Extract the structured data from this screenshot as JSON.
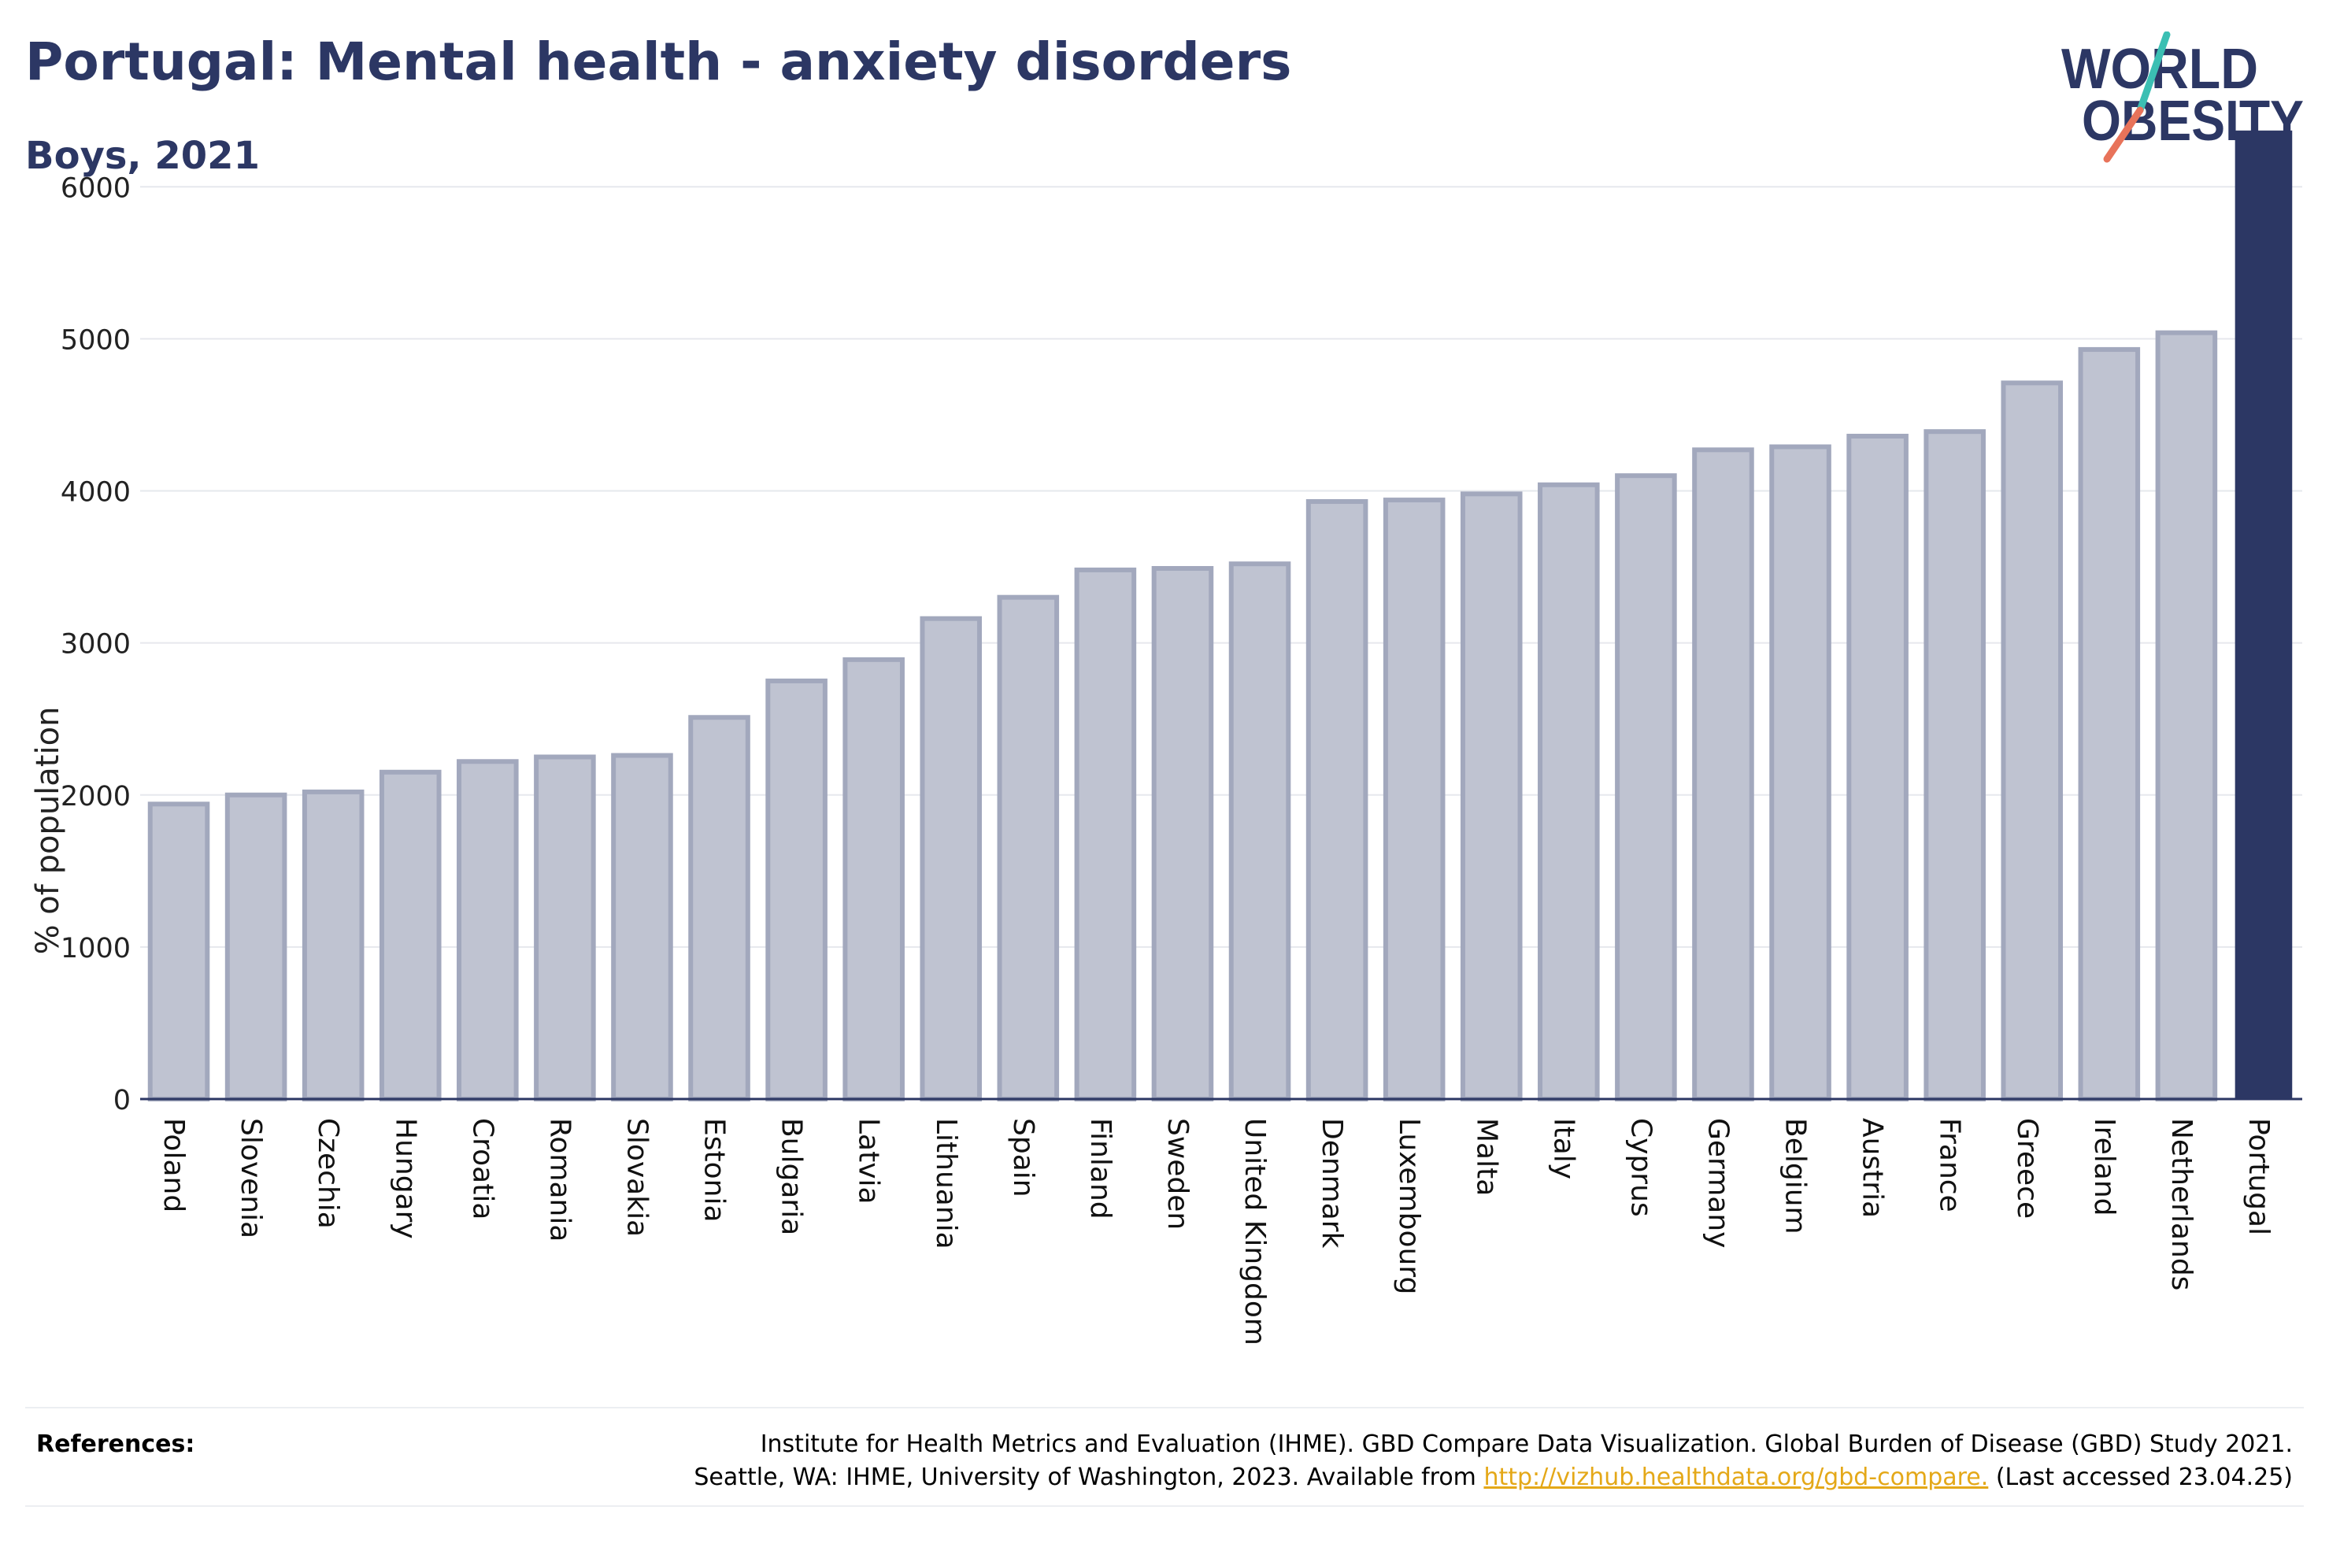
{
  "header": {
    "title": "Portugal: Mental health - anxiety disorders",
    "subtitle": "Boys, 2021"
  },
  "logo": {
    "line1": "WORLD",
    "line2": "OBESITY"
  },
  "colors": {
    "title": "#2c3764",
    "bar_default_fill": "#bfc3d1",
    "bar_default_stroke": "#a2a8bd",
    "bar_highlight": "#2c3764",
    "grid": "#e6e8ed",
    "logo_teal": "#3bbfb3",
    "logo_coral": "#e8735a",
    "link": "#e4a818"
  },
  "chart_data": {
    "type": "bar",
    "title": "Portugal: Mental health - anxiety disorders",
    "subtitle": "Boys, 2021",
    "xlabel": "",
    "ylabel": "% of population",
    "ylim": [
      0,
      6400
    ],
    "yticks": [
      0,
      1000,
      2000,
      3000,
      4000,
      5000,
      6000
    ],
    "grid": true,
    "highlight": "Portugal",
    "categories": [
      "Poland",
      "Slovenia",
      "Czechia",
      "Hungary",
      "Croatia",
      "Romania",
      "Slovakia",
      "Estonia",
      "Bulgaria",
      "Latvia",
      "Lithuania",
      "Spain",
      "Finland",
      "Sweden",
      "United Kingdom",
      "Denmark",
      "Luxembourg",
      "Malta",
      "Italy",
      "Cyprus",
      "Germany",
      "Belgium",
      "Austria",
      "France",
      "Greece",
      "Ireland",
      "Netherlands",
      "Portugal"
    ],
    "values": [
      1940,
      2000,
      2020,
      2150,
      2220,
      2250,
      2260,
      2510,
      2750,
      2890,
      3160,
      3300,
      3480,
      3490,
      3520,
      3930,
      3940,
      3980,
      4040,
      4100,
      4270,
      4290,
      4360,
      4390,
      4710,
      4930,
      5040,
      6370
    ]
  },
  "references": {
    "label": "References:",
    "line1": "Institute for Health Metrics and Evaluation (IHME). GBD Compare Data Visualization. Global Burden of Disease (GBD) Study 2021.",
    "line2_prefix": "Seattle, WA: IHME, University of Washington, 2023. Available from ",
    "link": "http://vizhub.healthdata.org/gbd-compare.",
    "line2_suffix": " (Last accessed 23.04.25)"
  }
}
